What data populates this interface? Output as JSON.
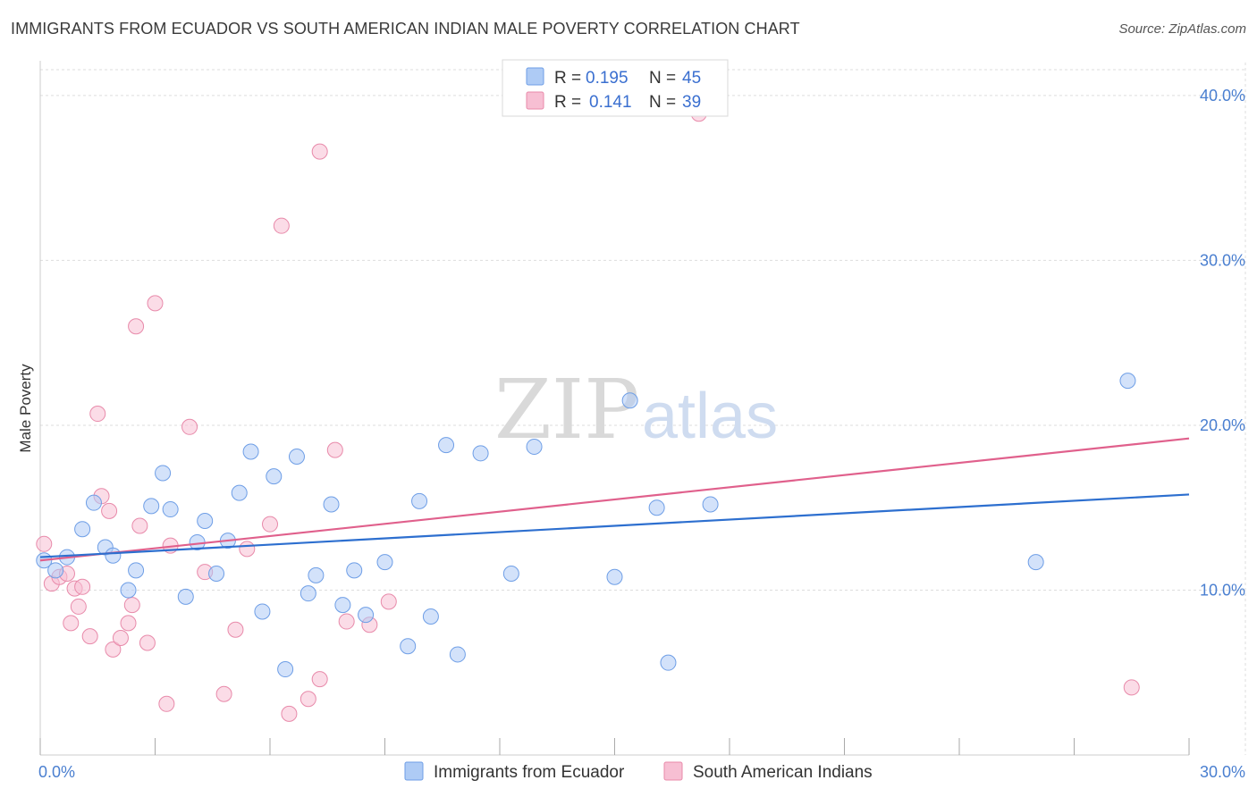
{
  "header": {
    "title": "IMMIGRANTS FROM ECUADOR VS SOUTH AMERICAN INDIAN MALE POVERTY CORRELATION CHART",
    "source": "Source: ZipAtlas.com"
  },
  "watermark": {
    "zip": "ZIP",
    "atlas": "atlas"
  },
  "legend": {
    "rows": [
      {
        "r_label": "R = ",
        "r_value": "0.195",
        "n_label": "N = ",
        "n_value": "45"
      },
      {
        "r_label": "R = ",
        "r_value": "0.141",
        "n_label": "N = ",
        "n_value": "39"
      }
    ]
  },
  "bottom_legend": {
    "items": [
      {
        "label": "Immigrants from Ecuador"
      },
      {
        "label": "South American Indians"
      }
    ]
  },
  "colors": {
    "blue_fill": "#aecbf5",
    "blue_stroke": "#6e9ee6",
    "blue_line": "#2d6fcf",
    "pink_fill": "#f7bfd3",
    "pink_stroke": "#e88aaa",
    "pink_line": "#e0608c",
    "tick_text": "#4a7fd0",
    "grid": "#dddddd"
  },
  "chart_data": {
    "type": "scatter",
    "title": "IMMIGRANTS FROM ECUADOR VS SOUTH AMERICAN INDIAN MALE POVERTY CORRELATION CHART",
    "xlabel": "",
    "ylabel": "Male Poverty",
    "xlim": [
      0,
      30
    ],
    "ylim": [
      0,
      42
    ],
    "x_ticks": [
      "0.0%",
      "30.0%"
    ],
    "y_ticks": [
      "10.0%",
      "20.0%",
      "30.0%",
      "40.0%"
    ],
    "y_tick_values": [
      10,
      20,
      30,
      40
    ],
    "grid": true,
    "legend_position": "top-center",
    "series": [
      {
        "name": "Immigrants from Ecuador",
        "color": "blue",
        "trend": {
          "x": [
            0,
            30
          ],
          "y": [
            12.0,
            15.8
          ]
        },
        "points": [
          [
            0.1,
            11.8
          ],
          [
            0.4,
            11.2
          ],
          [
            0.7,
            12.0
          ],
          [
            1.1,
            13.7
          ],
          [
            1.4,
            15.3
          ],
          [
            1.7,
            12.6
          ],
          [
            1.9,
            12.1
          ],
          [
            2.3,
            10.0
          ],
          [
            2.5,
            11.2
          ],
          [
            2.9,
            15.1
          ],
          [
            3.2,
            17.1
          ],
          [
            3.4,
            14.9
          ],
          [
            3.8,
            9.6
          ],
          [
            4.1,
            12.9
          ],
          [
            4.3,
            14.2
          ],
          [
            4.6,
            11.0
          ],
          [
            4.9,
            13.0
          ],
          [
            5.2,
            15.9
          ],
          [
            5.5,
            18.4
          ],
          [
            5.8,
            8.7
          ],
          [
            6.1,
            16.9
          ],
          [
            6.4,
            5.2
          ],
          [
            6.7,
            18.1
          ],
          [
            7.0,
            9.8
          ],
          [
            7.2,
            10.9
          ],
          [
            7.6,
            15.2
          ],
          [
            7.9,
            9.1
          ],
          [
            8.2,
            11.2
          ],
          [
            8.5,
            8.5
          ],
          [
            9.0,
            11.7
          ],
          [
            9.6,
            6.6
          ],
          [
            9.9,
            15.4
          ],
          [
            10.2,
            8.4
          ],
          [
            10.6,
            18.8
          ],
          [
            10.9,
            6.1
          ],
          [
            11.5,
            18.3
          ],
          [
            12.3,
            11.0
          ],
          [
            12.9,
            18.7
          ],
          [
            15.0,
            10.8
          ],
          [
            15.4,
            21.5
          ],
          [
            16.1,
            15.0
          ],
          [
            16.4,
            5.6
          ],
          [
            17.5,
            15.2
          ],
          [
            26.0,
            11.7
          ],
          [
            28.4,
            22.7
          ]
        ]
      },
      {
        "name": "South American Indians",
        "color": "pink",
        "trend": {
          "x": [
            0,
            30
          ],
          "y": [
            11.8,
            19.2
          ]
        },
        "points": [
          [
            0.1,
            12.8
          ],
          [
            0.3,
            10.4
          ],
          [
            0.5,
            10.8
          ],
          [
            0.7,
            11.0
          ],
          [
            0.9,
            10.1
          ],
          [
            1.1,
            10.2
          ],
          [
            1.3,
            7.2
          ],
          [
            1.5,
            20.7
          ],
          [
            1.6,
            15.7
          ],
          [
            1.8,
            14.8
          ],
          [
            1.9,
            6.4
          ],
          [
            2.1,
            7.1
          ],
          [
            2.3,
            8.0
          ],
          [
            2.4,
            9.1
          ],
          [
            2.5,
            26.0
          ],
          [
            2.6,
            13.9
          ],
          [
            2.8,
            6.8
          ],
          [
            3.0,
            27.4
          ],
          [
            3.3,
            3.1
          ],
          [
            3.4,
            12.7
          ],
          [
            3.9,
            19.9
          ],
          [
            4.3,
            11.1
          ],
          [
            4.8,
            3.7
          ],
          [
            5.1,
            7.6
          ],
          [
            5.4,
            12.5
          ],
          [
            6.0,
            14.0
          ],
          [
            6.3,
            32.1
          ],
          [
            6.5,
            2.5
          ],
          [
            7.0,
            3.4
          ],
          [
            7.3,
            36.6
          ],
          [
            7.7,
            18.5
          ],
          [
            8.0,
            8.1
          ],
          [
            8.6,
            7.9
          ],
          [
            9.1,
            9.3
          ],
          [
            1.0,
            9.0
          ],
          [
            0.8,
            8.0
          ],
          [
            7.3,
            4.6
          ],
          [
            28.5,
            4.1
          ],
          [
            17.2,
            38.9
          ]
        ]
      }
    ]
  }
}
